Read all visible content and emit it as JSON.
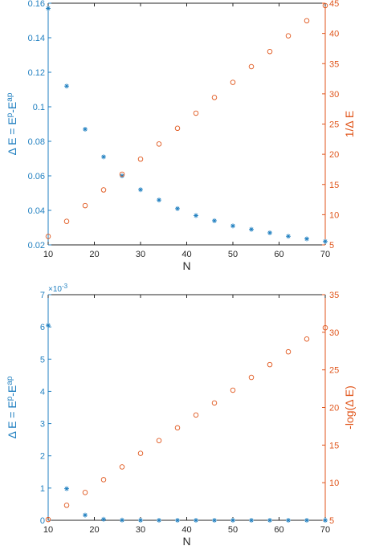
{
  "colors": {
    "left": "#1f7fc0",
    "right": "#e0561c",
    "axis": "#262626",
    "overlap": "#555555"
  },
  "chart_data": [
    {
      "type": "scatter",
      "xlabel": "N",
      "ylabel_left": "Δ E = E^p-E^ap",
      "ylabel_right": "1/Δ E",
      "xlim": [
        10,
        70
      ],
      "ylim_left": [
        0.02,
        0.16
      ],
      "ylim_right": [
        5,
        45
      ],
      "x_ticks": [
        "10",
        "20",
        "30",
        "40",
        "50",
        "60",
        "70"
      ],
      "y_ticks_left": [
        "0.02",
        "0.04",
        "0.06",
        "0.08",
        "0.1",
        "0.12",
        "0.14",
        "0.16"
      ],
      "y_ticks_right": [
        "5",
        "10",
        "15",
        "20",
        "25",
        "30",
        "35",
        "40",
        "45"
      ],
      "series": [
        {
          "axis": "left",
          "marker": "star",
          "x": [
            10,
            14,
            18,
            22,
            26,
            30,
            34,
            38,
            42,
            46,
            50,
            54,
            58,
            62,
            66,
            70
          ],
          "values": [
            0.157,
            0.112,
            0.087,
            0.071,
            0.06,
            0.052,
            0.046,
            0.041,
            0.037,
            0.034,
            0.031,
            0.029,
            0.027,
            0.025,
            0.0235,
            0.022
          ]
        },
        {
          "axis": "right",
          "marker": "circle",
          "x": [
            10,
            14,
            18,
            22,
            26,
            30,
            34,
            38,
            42,
            46,
            50,
            54,
            58,
            62,
            66,
            70
          ],
          "values": [
            6.4,
            8.9,
            11.5,
            14.1,
            16.7,
            19.2,
            21.7,
            24.3,
            26.8,
            29.4,
            31.9,
            34.5,
            37.0,
            39.6,
            42.1,
            44.6
          ]
        }
      ]
    },
    {
      "type": "scatter",
      "xlabel": "N",
      "ylabel_left": "Δ E = E^p-E^ap",
      "ylabel_right": "-log(Δ E)",
      "y_exponent": "×10^-3",
      "xlim": [
        10,
        70
      ],
      "ylim_left": [
        0,
        7
      ],
      "ylim_right": [
        5,
        35
      ],
      "x_ticks": [
        "10",
        "20",
        "30",
        "40",
        "50",
        "60",
        "70"
      ],
      "y_ticks_left": [
        "0",
        "1",
        "2",
        "3",
        "4",
        "5",
        "6",
        "7"
      ],
      "y_ticks_right": [
        "5",
        "10",
        "15",
        "20",
        "25",
        "30",
        "35"
      ],
      "series": [
        {
          "axis": "left",
          "marker": "star",
          "x": [
            10,
            14,
            18,
            22,
            26,
            30,
            34,
            38,
            42,
            46,
            50,
            54,
            58,
            62,
            66,
            70
          ],
          "values": [
            6.05,
            0.98,
            0.16,
            0.03,
            0.005,
            0.001,
            0,
            0,
            0,
            0,
            0,
            0,
            0,
            0,
            0,
            0
          ]
        },
        {
          "axis": "right",
          "marker": "circle",
          "x": [
            10,
            14,
            18,
            22,
            26,
            30,
            34,
            38,
            42,
            46,
            50,
            54,
            58,
            62,
            66,
            70
          ],
          "values": [
            5.1,
            7.0,
            8.7,
            10.4,
            12.1,
            13.9,
            15.6,
            17.3,
            19.0,
            20.6,
            22.3,
            24.0,
            25.7,
            27.4,
            29.1,
            30.6
          ]
        }
      ]
    }
  ]
}
